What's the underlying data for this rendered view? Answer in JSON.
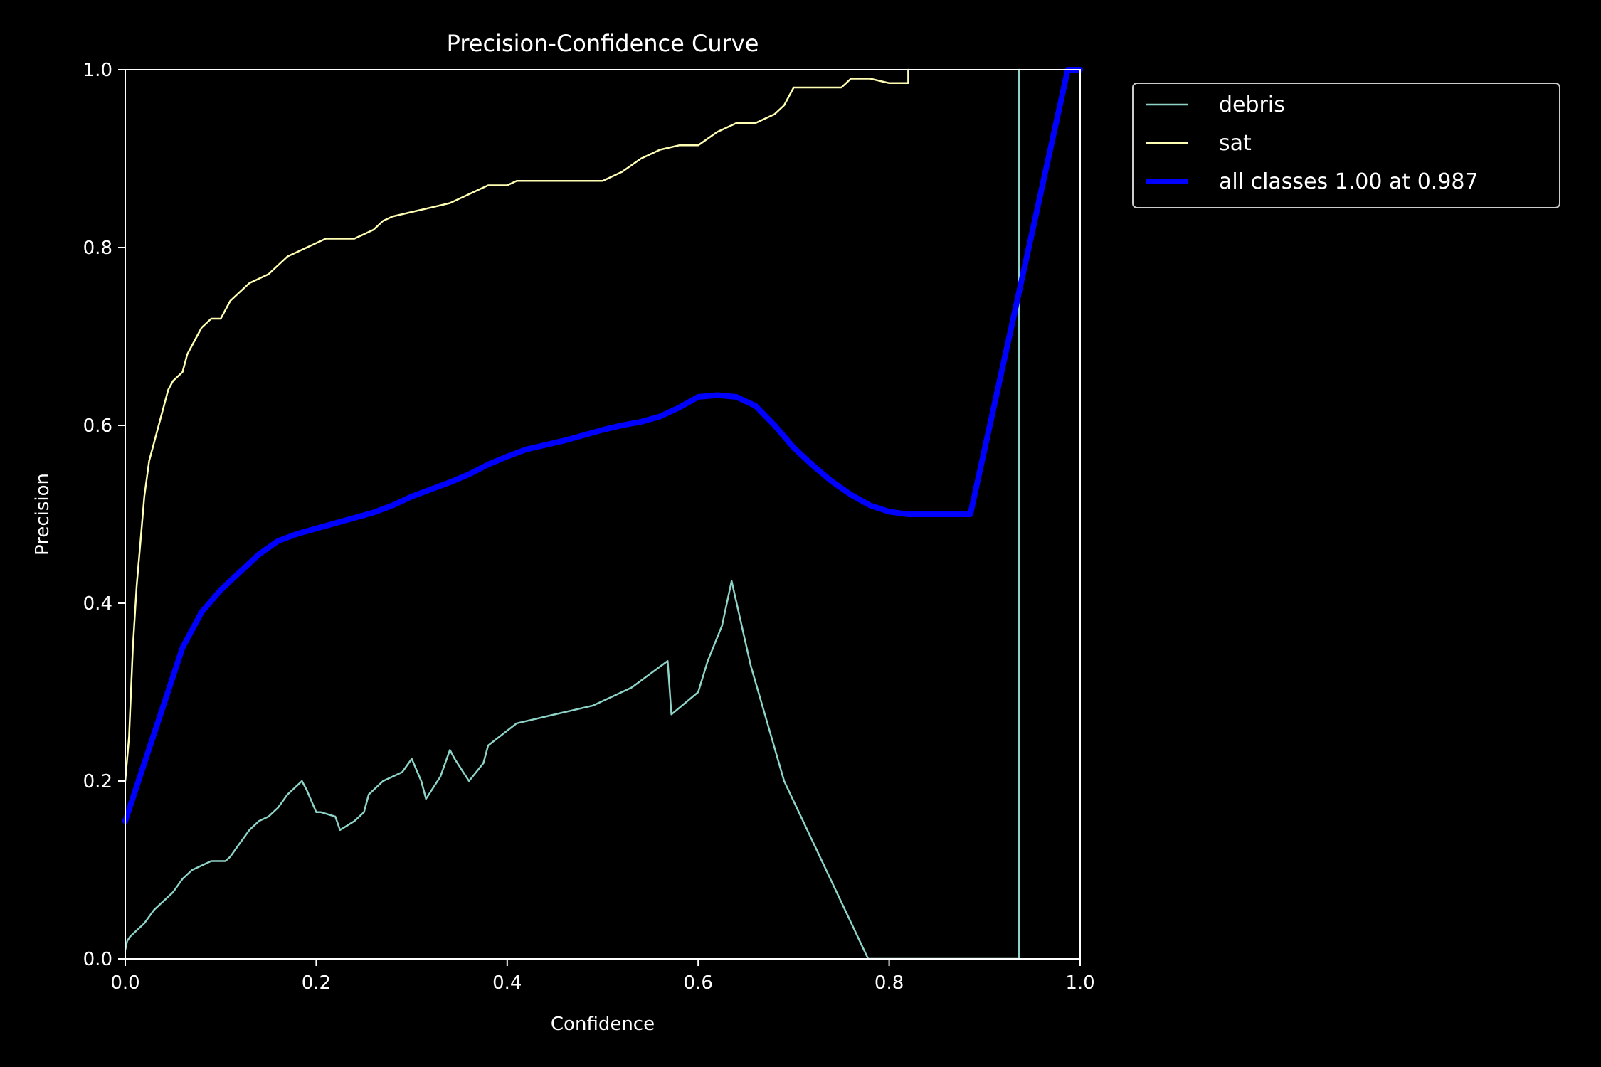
{
  "chart_data": {
    "type": "line",
    "title": "Precision-Confidence Curve",
    "xlabel": "Confidence",
    "ylabel": "Precision",
    "xlim": [
      0,
      1
    ],
    "ylim": [
      0,
      1
    ],
    "grid": false,
    "legend_placement": "outside-top-right",
    "xticks": [
      "0.0",
      "0.2",
      "0.4",
      "0.6",
      "0.8",
      "1.0"
    ],
    "yticks": [
      "0.0",
      "0.2",
      "0.4",
      "0.6",
      "0.8",
      "1.0"
    ],
    "series": [
      {
        "name": "debris",
        "color": "#8dd3c7",
        "weight": "thin",
        "x": [
          0.0,
          0.002,
          0.005,
          0.01,
          0.02,
          0.03,
          0.04,
          0.05,
          0.06,
          0.07,
          0.08,
          0.09,
          0.1,
          0.105,
          0.11,
          0.12,
          0.13,
          0.14,
          0.15,
          0.16,
          0.17,
          0.175,
          0.18,
          0.185,
          0.19,
          0.2,
          0.205,
          0.22,
          0.225,
          0.24,
          0.25,
          0.255,
          0.27,
          0.29,
          0.3,
          0.31,
          0.315,
          0.33,
          0.34,
          0.345,
          0.36,
          0.375,
          0.38,
          0.41,
          0.49,
          0.53,
          0.568,
          0.572,
          0.6,
          0.61,
          0.625,
          0.635,
          0.655,
          0.69,
          0.778,
          0.936,
          0.936
        ],
        "y": [
          0.01,
          0.02,
          0.025,
          0.03,
          0.04,
          0.055,
          0.065,
          0.075,
          0.09,
          0.1,
          0.105,
          0.11,
          0.11,
          0.11,
          0.115,
          0.13,
          0.145,
          0.155,
          0.16,
          0.17,
          0.185,
          0.19,
          0.195,
          0.2,
          0.19,
          0.165,
          0.165,
          0.16,
          0.145,
          0.155,
          0.165,
          0.185,
          0.2,
          0.21,
          0.225,
          0.2,
          0.18,
          0.205,
          0.235,
          0.225,
          0.2,
          0.22,
          0.24,
          0.265,
          0.285,
          0.305,
          0.335,
          0.275,
          0.3,
          0.335,
          0.375,
          0.425,
          0.33,
          0.2,
          0.0,
          0.0,
          1.0
        ]
      },
      {
        "name": "sat",
        "color": "#ffffb3",
        "weight": "thin",
        "x": [
          0.0,
          0.004,
          0.008,
          0.012,
          0.016,
          0.02,
          0.025,
          0.03,
          0.035,
          0.04,
          0.045,
          0.05,
          0.06,
          0.065,
          0.07,
          0.08,
          0.09,
          0.1,
          0.105,
          0.11,
          0.12,
          0.13,
          0.14,
          0.15,
          0.16,
          0.17,
          0.18,
          0.19,
          0.2,
          0.21,
          0.22,
          0.24,
          0.26,
          0.27,
          0.28,
          0.3,
          0.32,
          0.34,
          0.35,
          0.37,
          0.38,
          0.4,
          0.41,
          0.5,
          0.52,
          0.54,
          0.56,
          0.58,
          0.6,
          0.62,
          0.63,
          0.64,
          0.66,
          0.67,
          0.68,
          0.69,
          0.7,
          0.72,
          0.75,
          0.76,
          0.78,
          0.8,
          0.81,
          0.82,
          0.82
        ],
        "y": [
          0.2,
          0.25,
          0.35,
          0.42,
          0.47,
          0.52,
          0.56,
          0.58,
          0.6,
          0.62,
          0.64,
          0.65,
          0.66,
          0.68,
          0.69,
          0.71,
          0.72,
          0.72,
          0.73,
          0.74,
          0.75,
          0.76,
          0.765,
          0.77,
          0.78,
          0.79,
          0.795,
          0.8,
          0.805,
          0.81,
          0.81,
          0.81,
          0.82,
          0.83,
          0.835,
          0.84,
          0.845,
          0.85,
          0.855,
          0.865,
          0.87,
          0.87,
          0.875,
          0.875,
          0.885,
          0.9,
          0.91,
          0.915,
          0.915,
          0.93,
          0.935,
          0.94,
          0.94,
          0.945,
          0.95,
          0.96,
          0.98,
          0.98,
          0.98,
          0.99,
          0.99,
          0.985,
          0.985,
          0.985,
          1.0
        ]
      },
      {
        "name": "all classes 1.00 at 0.987",
        "color": "#0000ff",
        "weight": "thick",
        "x": [
          0.0,
          0.02,
          0.04,
          0.06,
          0.08,
          0.1,
          0.12,
          0.14,
          0.16,
          0.18,
          0.2,
          0.22,
          0.24,
          0.26,
          0.28,
          0.3,
          0.32,
          0.34,
          0.36,
          0.38,
          0.4,
          0.42,
          0.44,
          0.46,
          0.48,
          0.5,
          0.52,
          0.54,
          0.56,
          0.58,
          0.6,
          0.62,
          0.64,
          0.66,
          0.68,
          0.7,
          0.72,
          0.74,
          0.76,
          0.78,
          0.8,
          0.82,
          0.84,
          0.86,
          0.885,
          0.987,
          1.0
        ],
        "y": [
          0.155,
          0.22,
          0.285,
          0.35,
          0.39,
          0.415,
          0.435,
          0.455,
          0.47,
          0.478,
          0.484,
          0.49,
          0.496,
          0.502,
          0.51,
          0.52,
          0.528,
          0.536,
          0.545,
          0.556,
          0.565,
          0.573,
          0.578,
          0.583,
          0.589,
          0.595,
          0.6,
          0.604,
          0.61,
          0.62,
          0.632,
          0.634,
          0.632,
          0.622,
          0.6,
          0.575,
          0.555,
          0.537,
          0.522,
          0.51,
          0.503,
          0.5,
          0.5,
          0.5,
          0.5,
          1.0,
          1.0
        ]
      }
    ]
  }
}
